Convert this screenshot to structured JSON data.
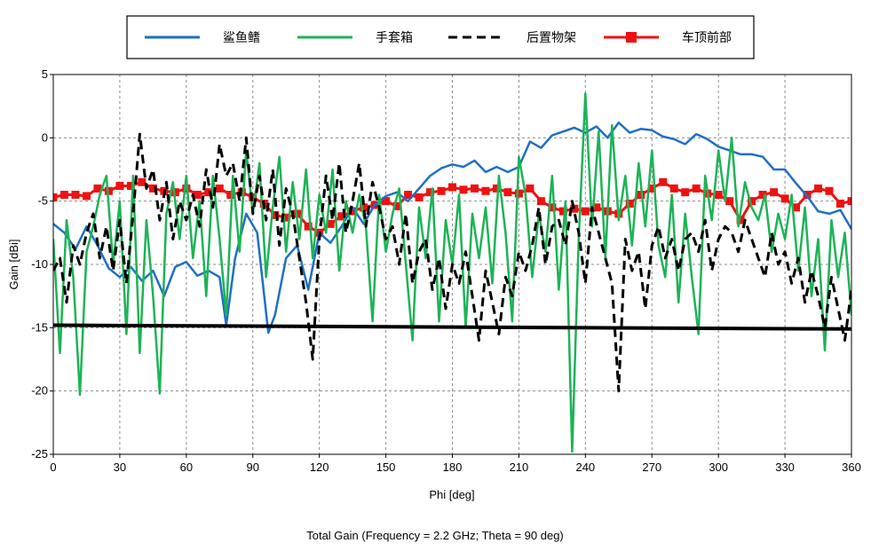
{
  "chart_data": {
    "type": "line",
    "title": "Total Gain (Frequency = 2.2 GHz; Theta = 90 deg)",
    "xlabel": "Phi [deg]",
    "ylabel": "Gain [dBi]",
    "xlim": [
      0,
      360
    ],
    "ylim": [
      -25,
      5
    ],
    "xticks": [
      0,
      30,
      60,
      90,
      120,
      150,
      180,
      210,
      240,
      270,
      300,
      330,
      360
    ],
    "yticks": [
      5,
      0,
      -5,
      -10,
      -15,
      -20,
      -25
    ],
    "grid": true,
    "legend_position": "top-center",
    "series": [
      {
        "name": "鲨鱼鳍",
        "color": "#1f6fc5",
        "style": "solid",
        "x": [
          0,
          5,
          10,
          15,
          20,
          25,
          30,
          35,
          40,
          45,
          50,
          55,
          60,
          65,
          70,
          75,
          78,
          82,
          87,
          92,
          97,
          100,
          105,
          110,
          115,
          120,
          125,
          130,
          135,
          140,
          145,
          150,
          155,
          160,
          165,
          170,
          175,
          180,
          185,
          190,
          195,
          200,
          205,
          210,
          215,
          220,
          225,
          230,
          235,
          240,
          245,
          250,
          255,
          260,
          265,
          270,
          275,
          280,
          285,
          290,
          295,
          300,
          305,
          310,
          315,
          320,
          325,
          330,
          335,
          340,
          345,
          350,
          355,
          360
        ],
        "y": [
          -6.8,
          -7.5,
          -8.8,
          -7.0,
          -8.5,
          -10.3,
          -11.0,
          -10.2,
          -11.3,
          -10.5,
          -12.5,
          -10.2,
          -9.8,
          -10.9,
          -10.5,
          -11.0,
          -14.8,
          -9.5,
          -6.0,
          -7.5,
          -15.4,
          -14.0,
          -9.5,
          -8.5,
          -12.0,
          -7.5,
          -8.3,
          -7.0,
          -5.5,
          -6.8,
          -5.3,
          -4.6,
          -4.3,
          -5.0,
          -4.0,
          -3.0,
          -2.4,
          -2.1,
          -2.3,
          -1.8,
          -2.7,
          -2.3,
          -2.7,
          -2.3,
          -0.3,
          -0.8,
          0.2,
          0.5,
          0.8,
          0.4,
          0.9,
          0.0,
          1.2,
          0.4,
          0.7,
          0.6,
          0.1,
          -0.1,
          -0.5,
          0.3,
          -0.1,
          -0.7,
          -1.0,
          -1.3,
          -1.3,
          -1.5,
          -2.5,
          -2.5,
          -3.6,
          -4.6,
          -5.8,
          -6.0,
          -5.7,
          -7.2
        ]
      },
      {
        "name": "手套箱",
        "color": "#1db356",
        "style": "solid",
        "x": [
          0,
          3,
          6,
          9,
          12,
          15,
          18,
          21,
          24,
          27,
          30,
          33,
          36,
          39,
          42,
          45,
          48,
          51,
          54,
          57,
          60,
          63,
          66,
          69,
          72,
          75,
          78,
          81,
          84,
          87,
          90,
          93,
          96,
          99,
          102,
          105,
          108,
          111,
          114,
          117,
          120,
          123,
          126,
          129,
          132,
          135,
          138,
          141,
          144,
          147,
          150,
          153,
          156,
          159,
          162,
          165,
          168,
          171,
          174,
          177,
          180,
          183,
          186,
          189,
          192,
          195,
          198,
          201,
          204,
          207,
          210,
          213,
          216,
          219,
          222,
          225,
          228,
          231,
          234,
          237,
          240,
          243,
          246,
          249,
          252,
          255,
          258,
          261,
          264,
          267,
          270,
          273,
          276,
          279,
          282,
          285,
          288,
          291,
          294,
          297,
          300,
          303,
          306,
          309,
          312,
          315,
          318,
          321,
          324,
          327,
          330,
          333,
          336,
          339,
          342,
          345,
          348,
          351,
          354,
          357,
          360
        ],
        "y": [
          -8.0,
          -17.0,
          -6.5,
          -11.0,
          -20.3,
          -9.0,
          -7.0,
          -4.5,
          -3.0,
          -10.0,
          -5.0,
          -15.5,
          -3.0,
          -17.0,
          -6.5,
          -12.5,
          -20.2,
          -6.0,
          -3.5,
          -8.0,
          -3.0,
          -9.5,
          -5.0,
          -12.5,
          -3.0,
          -8.0,
          -14.0,
          -3.0,
          -9.0,
          -1.0,
          -6.0,
          -2.0,
          -11.0,
          -5.5,
          -1.5,
          -9.0,
          -3.5,
          -8.0,
          -2.5,
          -9.5,
          -4.5,
          -7.5,
          -2.5,
          -10.5,
          -5.0,
          -7.5,
          -4.5,
          -7.0,
          -14.5,
          -4.5,
          -9.0,
          -6.0,
          -4.0,
          -10.0,
          -16.0,
          -5.5,
          -9.5,
          -4.0,
          -14.5,
          -6.5,
          -10.0,
          -4.5,
          -15.0,
          -6.0,
          -9.5,
          -5.5,
          -11.5,
          -3.0,
          -7.5,
          -14.5,
          -1.5,
          -4.5,
          -11.0,
          -6.0,
          -9.0,
          -3.0,
          -12.0,
          -5.0,
          -24.8,
          -8.0,
          3.5,
          -7.0,
          0.5,
          -9.5,
          1.0,
          -6.5,
          -3.0,
          -8.5,
          -2.0,
          -7.0,
          -1.0,
          -8.5,
          -11.0,
          -4.5,
          -13.0,
          -6.0,
          -11.0,
          -15.5,
          -3.0,
          -6.5,
          -1.0,
          -5.0,
          0.0,
          -7.0,
          -3.5,
          -5.5,
          -6.5,
          -4.5,
          -9.0,
          -6.0,
          -8.0,
          -4.5,
          -10.5,
          -5.5,
          -12.5,
          -8.0,
          -16.8,
          -6.5,
          -11.0,
          -7.5,
          -14.0
        ]
      },
      {
        "name": "后置物架",
        "color": "#000000",
        "style": "dashed",
        "x": [
          0,
          3,
          6,
          9,
          12,
          15,
          18,
          21,
          24,
          27,
          30,
          33,
          36,
          39,
          42,
          45,
          48,
          51,
          54,
          57,
          60,
          63,
          66,
          69,
          72,
          75,
          78,
          81,
          84,
          87,
          90,
          93,
          96,
          99,
          102,
          105,
          108,
          111,
          114,
          117,
          120,
          123,
          126,
          129,
          132,
          135,
          138,
          141,
          144,
          147,
          150,
          153,
          156,
          159,
          162,
          165,
          168,
          171,
          174,
          177,
          180,
          183,
          186,
          189,
          192,
          195,
          198,
          201,
          204,
          207,
          210,
          213,
          216,
          219,
          222,
          225,
          228,
          231,
          234,
          237,
          240,
          243,
          246,
          249,
          252,
          255,
          258,
          261,
          264,
          267,
          270,
          273,
          276,
          279,
          282,
          285,
          288,
          291,
          294,
          297,
          300,
          303,
          306,
          309,
          312,
          315,
          318,
          321,
          324,
          327,
          330,
          333,
          336,
          339,
          342,
          345,
          348,
          351,
          354,
          357,
          360
        ],
        "y": [
          -10.5,
          -9.5,
          -13.0,
          -8.5,
          -10.0,
          -7.5,
          -6.0,
          -9.5,
          -7.0,
          -10.5,
          -6.5,
          -11.5,
          -6.0,
          0.3,
          -4.0,
          -2.5,
          -6.5,
          -3.5,
          -8.0,
          -5.0,
          -6.5,
          -4.5,
          -7.0,
          -2.5,
          -5.5,
          -0.5,
          -3.0,
          -2.0,
          -5.0,
          0.0,
          -6.0,
          -3.0,
          -6.5,
          -2.5,
          -8.5,
          -4.0,
          -6.0,
          -9.5,
          -13.0,
          -17.5,
          -8.0,
          -3.0,
          -6.5,
          -2.0,
          -7.5,
          -5.0,
          -2.0,
          -7.0,
          -3.5,
          -5.5,
          -8.0,
          -7.0,
          -10.0,
          -6.0,
          -11.5,
          -9.0,
          -8.0,
          -12.0,
          -9.5,
          -13.5,
          -10.0,
          -11.5,
          -9.0,
          -12.5,
          -16.0,
          -10.5,
          -13.0,
          -15.5,
          -11.0,
          -12.5,
          -9.0,
          -10.5,
          -8.5,
          -5.5,
          -10.0,
          -7.0,
          -6.5,
          -8.5,
          -5.0,
          -7.5,
          -11.5,
          -5.5,
          -7.5,
          -9.5,
          -11.5,
          -20.0,
          -8.0,
          -10.5,
          -9.0,
          -13.5,
          -8.5,
          -7.0,
          -9.5,
          -8.0,
          -10.5,
          -8.0,
          -7.5,
          -9.0,
          -6.5,
          -10.5,
          -8.0,
          -7.0,
          -7.5,
          -9.0,
          -6.5,
          -8.0,
          -9.5,
          -11.0,
          -7.5,
          -10.0,
          -9.0,
          -11.5,
          -9.5,
          -13.0,
          -10.5,
          -12.5,
          -15.0,
          -11.0,
          -13.5,
          -16.0,
          -12.0
        ]
      },
      {
        "name": "车顶前部",
        "color": "#ee1111",
        "style": "solid-square-markers",
        "x": [
          0,
          5,
          10,
          15,
          20,
          25,
          30,
          35,
          40,
          45,
          50,
          55,
          60,
          65,
          70,
          75,
          80,
          85,
          90,
          95,
          100,
          105,
          110,
          115,
          120,
          125,
          130,
          135,
          140,
          145,
          150,
          155,
          160,
          165,
          170,
          175,
          180,
          185,
          190,
          195,
          200,
          205,
          210,
          215,
          220,
          225,
          230,
          235,
          240,
          245,
          250,
          255,
          260,
          265,
          270,
          275,
          280,
          285,
          290,
          295,
          300,
          305,
          310,
          315,
          320,
          325,
          330,
          335,
          340,
          345,
          350,
          355,
          360
        ],
        "y": [
          -4.7,
          -4.5,
          -4.5,
          -4.6,
          -4.0,
          -4.2,
          -3.8,
          -3.8,
          -3.5,
          -4.0,
          -4.2,
          -4.3,
          -4.0,
          -4.5,
          -4.3,
          -4.0,
          -4.5,
          -4.3,
          -4.7,
          -5.2,
          -6.1,
          -6.3,
          -6.0,
          -7.0,
          -7.5,
          -6.8,
          -6.2,
          -5.8,
          -5.5,
          -5.3,
          -5.0,
          -5.4,
          -4.5,
          -4.7,
          -4.3,
          -4.2,
          -3.9,
          -4.1,
          -4.0,
          -4.2,
          -4.0,
          -4.3,
          -4.4,
          -4.0,
          -5.0,
          -5.5,
          -5.8,
          -5.6,
          -5.8,
          -5.5,
          -5.8,
          -6.0,
          -5.2,
          -4.5,
          -4.0,
          -3.5,
          -4.0,
          -4.3,
          -4.0,
          -4.4,
          -4.5,
          -5.0,
          -6.5,
          -5.0,
          -4.5,
          -4.3,
          -4.8,
          -5.5,
          -4.5,
          -4.0,
          -4.2,
          -5.2,
          -5.0
        ]
      },
      {
        "name": "",
        "color": "#000000",
        "style": "thick-solid",
        "x": [
          0,
          360
        ],
        "y": [
          -14.8,
          -15.1
        ]
      }
    ]
  }
}
